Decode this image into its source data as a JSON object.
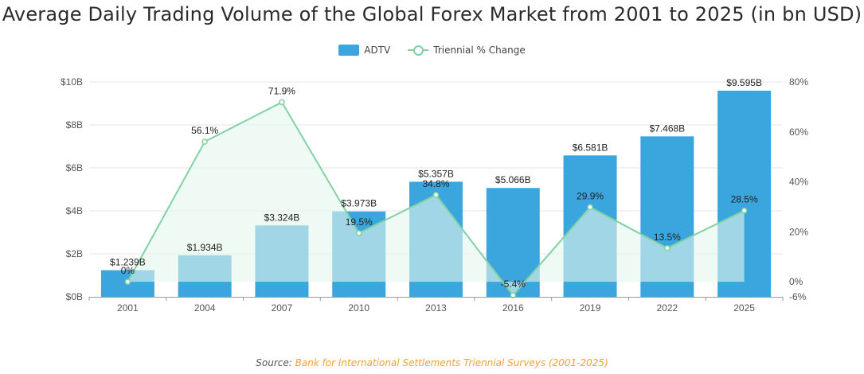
{
  "title": "Average Daily Trading Volume of the Global Forex Market from 2001 to 2025 (in bn USD)",
  "legend": {
    "bar_label": "ADTV",
    "line_label": "Triennial % Change"
  },
  "source": {
    "prefix": "Source:",
    "text": "Bank for International Settlements Triennial Surveys (2001-2025)"
  },
  "colors": {
    "bar": "#3aa6dd",
    "line": "#82d1a3",
    "area": "#e6f6ec",
    "grid": "#e6e6e6",
    "text": "#555555"
  },
  "chart_data": {
    "type": "bar",
    "categories": [
      "2001",
      "2004",
      "2007",
      "2010",
      "2013",
      "2016",
      "2019",
      "2022",
      "2025"
    ],
    "series": [
      {
        "name": "ADTV",
        "type": "bar",
        "axis": "left",
        "values": [
          1.239,
          1.934,
          3.324,
          3.973,
          5.357,
          5.066,
          6.581,
          7.468,
          9.595
        ],
        "labels": [
          "$1.239B",
          "$1.934B",
          "$3.324B",
          "$3.973B",
          "$5.357B",
          "$5.066B",
          "$6.581B",
          "$7.468B",
          "$9.595B"
        ]
      },
      {
        "name": "Triennial % Change",
        "type": "line",
        "axis": "right",
        "values": [
          0,
          56.1,
          71.9,
          19.5,
          34.8,
          -5.4,
          29.9,
          13.5,
          28.5
        ],
        "labels": [
          "0%",
          "56.1%",
          "71.9%",
          "19.5%",
          "34.8%",
          "-5.4%",
          "29.9%",
          "13.5%",
          "28.5%"
        ]
      }
    ],
    "y_left": {
      "range": [
        0,
        10
      ],
      "ticks": [
        0,
        2,
        4,
        6,
        8,
        10
      ],
      "tick_labels": [
        "$0B",
        "$2B",
        "$4B",
        "$6B",
        "$8B",
        "$10B"
      ]
    },
    "y_right": {
      "range": [
        -6,
        80
      ],
      "ticks": [
        -6,
        0,
        20,
        40,
        60,
        80
      ],
      "tick_labels": [
        "-6%",
        "0%",
        "20%",
        "40%",
        "60%",
        "80%"
      ]
    },
    "grid": true,
    "legend_position": "top-center"
  }
}
